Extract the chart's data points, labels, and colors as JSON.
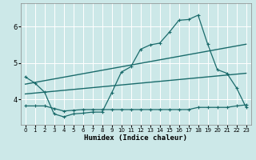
{
  "xlabel": "Humidex (Indice chaleur)",
  "bg_color": "#cce8e8",
  "grid_color": "#ffffff",
  "line_color": "#1a6b6b",
  "x_ticks": [
    0,
    1,
    2,
    3,
    4,
    5,
    6,
    7,
    8,
    9,
    10,
    11,
    12,
    13,
    14,
    15,
    16,
    17,
    18,
    19,
    20,
    21,
    22,
    23
  ],
  "ylim": [
    3.3,
    6.65
  ],
  "xlim": [
    -0.5,
    23.5
  ],
  "yticks": [
    4,
    5,
    6
  ],
  "line1_x": [
    0,
    1,
    2,
    3,
    4,
    5,
    6,
    7,
    8,
    9,
    10,
    11,
    12,
    13,
    14,
    15,
    16,
    17,
    18,
    19,
    20,
    21,
    22,
    23
  ],
  "line1_y": [
    4.62,
    4.45,
    4.2,
    3.6,
    3.52,
    3.6,
    3.62,
    3.65,
    3.65,
    4.18,
    4.75,
    4.9,
    5.38,
    5.5,
    5.55,
    5.85,
    6.18,
    6.2,
    6.32,
    5.52,
    4.82,
    4.72,
    4.32,
    3.78
  ],
  "line2_x": [
    0,
    23
  ],
  "line2_y": [
    4.42,
    5.52
  ],
  "line3_x": [
    0,
    23
  ],
  "line3_y": [
    4.15,
    4.72
  ],
  "line4_x": [
    0,
    1,
    2,
    3,
    4,
    5,
    6,
    7,
    8,
    9,
    10,
    11,
    12,
    13,
    14,
    15,
    16,
    17,
    18,
    19,
    20,
    21,
    22,
    23
  ],
  "line4_y": [
    3.82,
    3.82,
    3.82,
    3.75,
    3.68,
    3.7,
    3.72,
    3.72,
    3.72,
    3.72,
    3.72,
    3.72,
    3.72,
    3.72,
    3.72,
    3.72,
    3.72,
    3.72,
    3.78,
    3.78,
    3.78,
    3.78,
    3.82,
    3.85
  ]
}
